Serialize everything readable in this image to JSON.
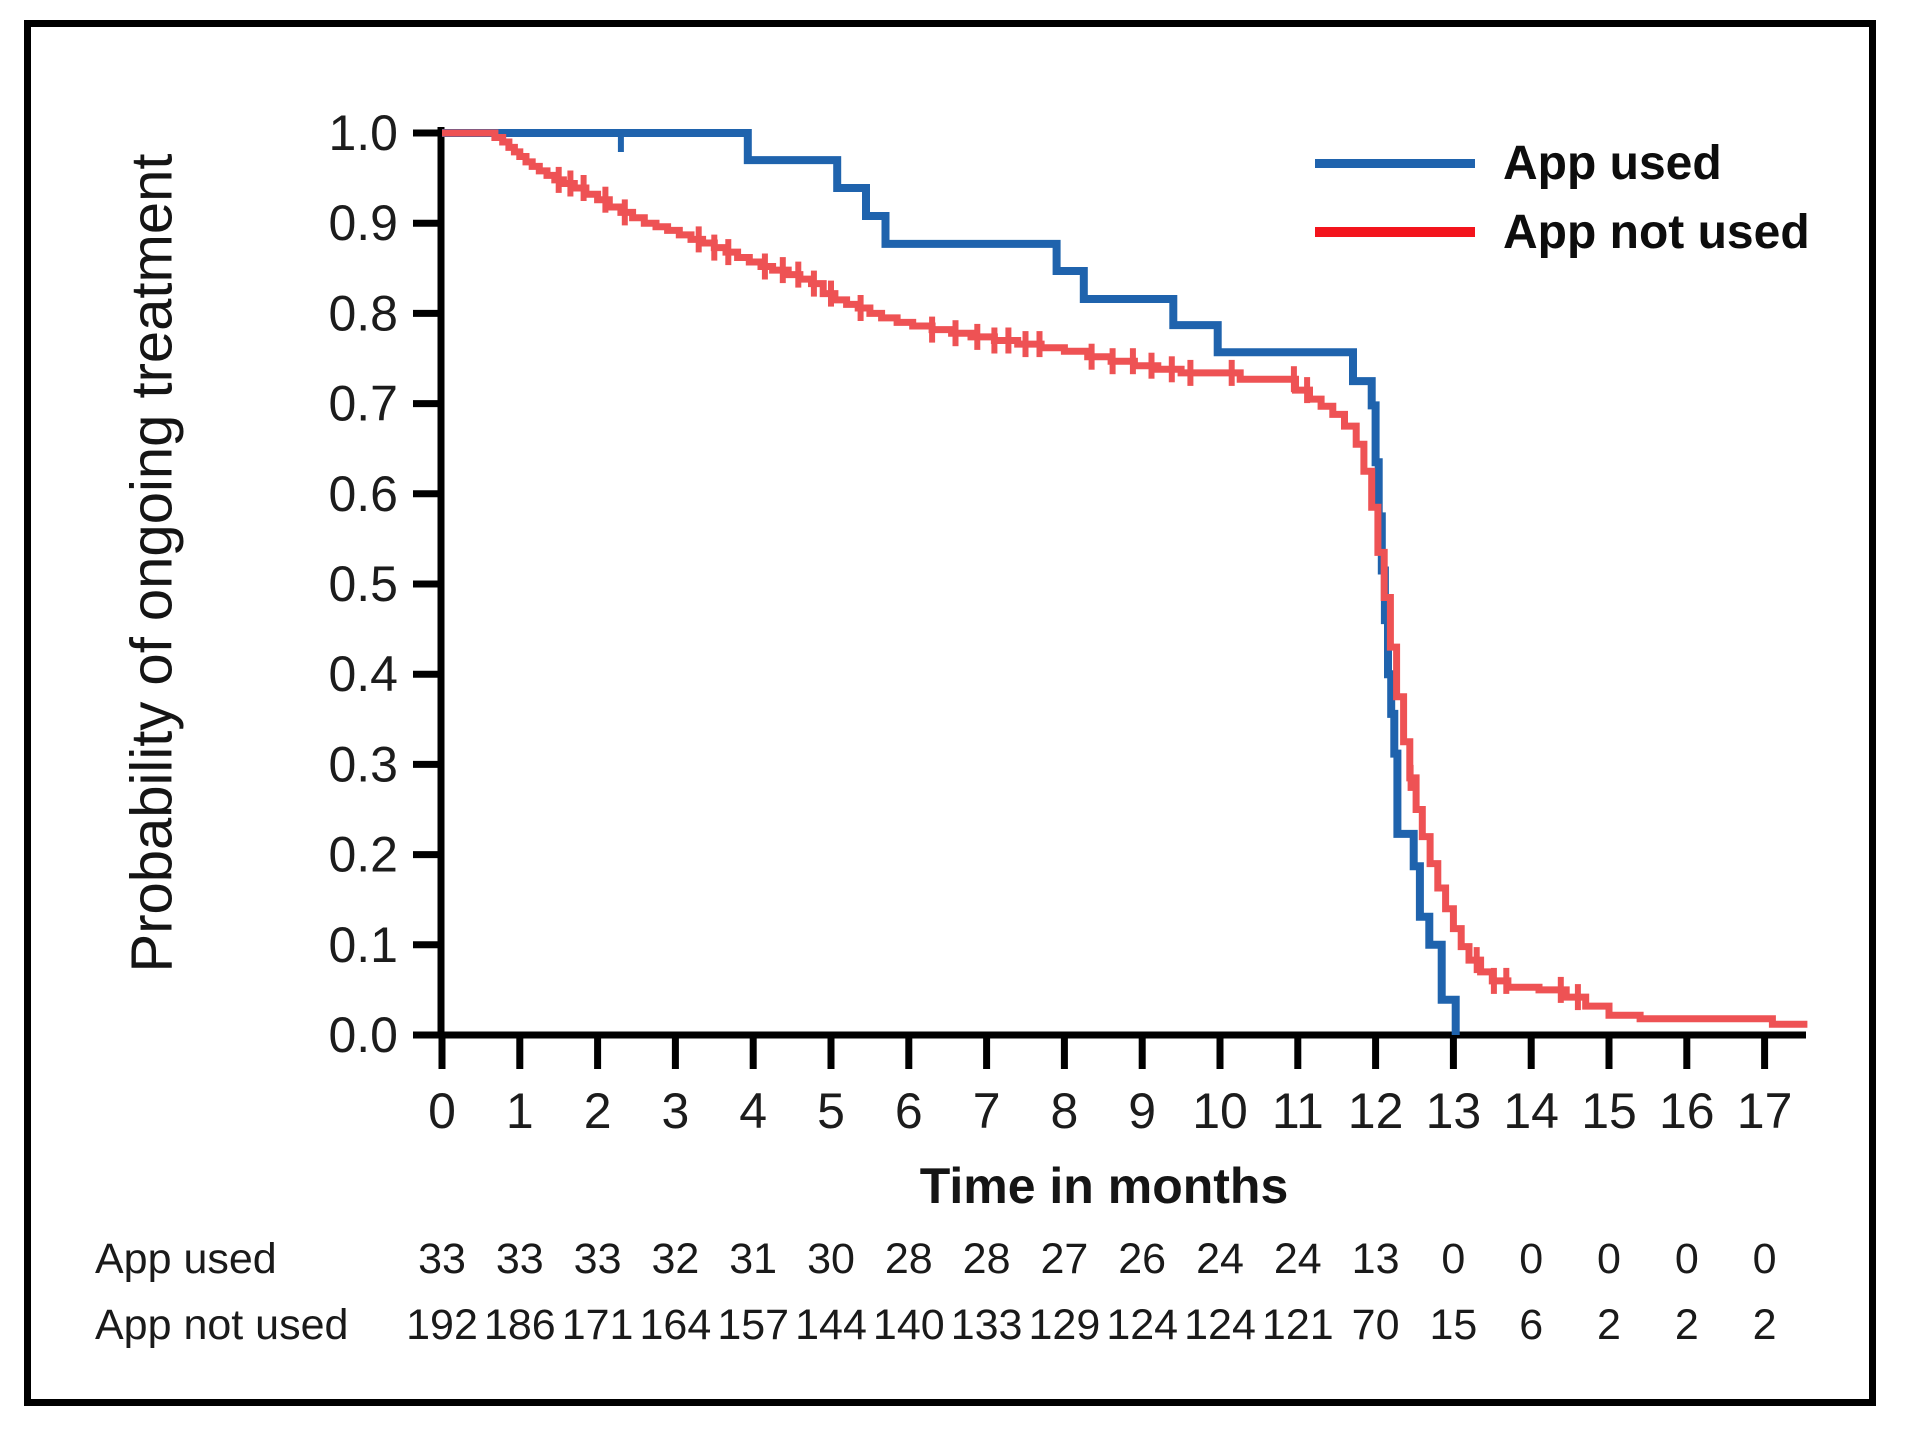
{
  "figure": {
    "background": "#ffffff",
    "border_color": "#000000"
  },
  "chart_data": {
    "type": "line",
    "subtype": "kaplan-meier-step",
    "title": "",
    "xlabel": "Time in months",
    "ylabel": "Probability of ongoing treatment",
    "xlim": [
      0,
      17.55
    ],
    "ylim": [
      0.0,
      1.0
    ],
    "grid": false,
    "axis_color": "#000000",
    "tick_label_color": "#1c1c1c",
    "xticks": [
      0,
      1,
      2,
      3,
      4,
      5,
      6,
      7,
      8,
      9,
      10,
      11,
      12,
      13,
      14,
      15,
      16,
      17
    ],
    "yticks": [
      "1.0",
      "0.9",
      "0.8",
      "0.7",
      "0.6",
      "0.5",
      "0.4",
      "0.3",
      "0.2",
      "0.1",
      "0.0"
    ],
    "legend": {
      "position": "top-right",
      "entries": [
        {
          "label": "App used",
          "color": "#1f63ad"
        },
        {
          "label": "App not used",
          "color": "#f3141c"
        }
      ]
    },
    "series": [
      {
        "name": "App used",
        "color": "#1f63ad",
        "end_time": 13.03,
        "points": [
          [
            0,
            1.0
          ],
          [
            3.93,
            0.97
          ],
          [
            5.08,
            0.939
          ],
          [
            5.45,
            0.908
          ],
          [
            5.7,
            0.877
          ],
          [
            7.9,
            0.847
          ],
          [
            8.25,
            0.816
          ],
          [
            9.4,
            0.787
          ],
          [
            9.97,
            0.757
          ],
          [
            11.71,
            0.725
          ],
          [
            11.95,
            0.698
          ],
          [
            12.0,
            0.635
          ],
          [
            12.04,
            0.575
          ],
          [
            12.08,
            0.515
          ],
          [
            12.12,
            0.46
          ],
          [
            12.16,
            0.4
          ],
          [
            12.2,
            0.356
          ],
          [
            12.24,
            0.312
          ],
          [
            12.28,
            0.223
          ],
          [
            12.49,
            0.187
          ],
          [
            12.57,
            0.131
          ],
          [
            12.69,
            0.1
          ],
          [
            12.85,
            0.039
          ],
          [
            13.03,
            0.0
          ]
        ],
        "censor_times": [
          2.3
        ]
      },
      {
        "name": "App not used",
        "color": "#ee5254",
        "end_time": 17.55,
        "points": [
          [
            0,
            1.0
          ],
          [
            0.68,
            0.995
          ],
          [
            0.78,
            0.99
          ],
          [
            0.86,
            0.984
          ],
          [
            0.93,
            0.979
          ],
          [
            1.0,
            0.974
          ],
          [
            1.08,
            0.968
          ],
          [
            1.16,
            0.963
          ],
          [
            1.25,
            0.958
          ],
          [
            1.35,
            0.953
          ],
          [
            1.45,
            0.948
          ],
          [
            1.56,
            0.944
          ],
          [
            1.7,
            0.939
          ],
          [
            1.85,
            0.932
          ],
          [
            2.0,
            0.926
          ],
          [
            2.15,
            0.918
          ],
          [
            2.3,
            0.912
          ],
          [
            2.45,
            0.906
          ],
          [
            2.6,
            0.9
          ],
          [
            2.75,
            0.896
          ],
          [
            2.9,
            0.892
          ],
          [
            3.05,
            0.887
          ],
          [
            3.2,
            0.882
          ],
          [
            3.35,
            0.878
          ],
          [
            3.5,
            0.873
          ],
          [
            3.65,
            0.868
          ],
          [
            3.8,
            0.862
          ],
          [
            3.95,
            0.857
          ],
          [
            4.1,
            0.852
          ],
          [
            4.25,
            0.848
          ],
          [
            4.45,
            0.843
          ],
          [
            4.6,
            0.838
          ],
          [
            4.75,
            0.833
          ],
          [
            4.9,
            0.822
          ],
          [
            5.05,
            0.815
          ],
          [
            5.2,
            0.81
          ],
          [
            5.35,
            0.806
          ],
          [
            5.5,
            0.8
          ],
          [
            5.65,
            0.795
          ],
          [
            5.85,
            0.79
          ],
          [
            6.05,
            0.786
          ],
          [
            6.3,
            0.782
          ],
          [
            6.55,
            0.778
          ],
          [
            6.8,
            0.774
          ],
          [
            7.1,
            0.77
          ],
          [
            7.4,
            0.766
          ],
          [
            7.7,
            0.762
          ],
          [
            8.0,
            0.758
          ],
          [
            8.3,
            0.752
          ],
          [
            8.6,
            0.747
          ],
          [
            8.9,
            0.742
          ],
          [
            9.2,
            0.738
          ],
          [
            9.5,
            0.734
          ],
          [
            10.26,
            0.727
          ],
          [
            10.97,
            0.715
          ],
          [
            11.15,
            0.705
          ],
          [
            11.3,
            0.697
          ],
          [
            11.45,
            0.688
          ],
          [
            11.6,
            0.675
          ],
          [
            11.75,
            0.655
          ],
          [
            11.85,
            0.625
          ],
          [
            11.95,
            0.585
          ],
          [
            12.03,
            0.535
          ],
          [
            12.11,
            0.485
          ],
          [
            12.19,
            0.43
          ],
          [
            12.27,
            0.375
          ],
          [
            12.36,
            0.325
          ],
          [
            12.44,
            0.285
          ],
          [
            12.52,
            0.25
          ],
          [
            12.6,
            0.22
          ],
          [
            12.7,
            0.19
          ],
          [
            12.8,
            0.163
          ],
          [
            12.9,
            0.14
          ],
          [
            13.0,
            0.118
          ],
          [
            13.1,
            0.098
          ],
          [
            13.2,
            0.083
          ],
          [
            13.35,
            0.07
          ],
          [
            13.5,
            0.06
          ],
          [
            13.7,
            0.053
          ],
          [
            14.1,
            0.05
          ],
          [
            14.45,
            0.042
          ],
          [
            14.7,
            0.032
          ],
          [
            15.0,
            0.022
          ],
          [
            15.4,
            0.018
          ],
          [
            17.1,
            0.012
          ]
        ],
        "censor_times": [
          1.5,
          1.65,
          1.82,
          2.1,
          2.35,
          3.3,
          3.5,
          3.68,
          4.15,
          4.38,
          4.58,
          4.78,
          5.0,
          5.38,
          6.3,
          6.6,
          6.88,
          7.1,
          7.28,
          7.5,
          7.68,
          8.35,
          8.62,
          8.88,
          9.12,
          9.38,
          9.62,
          10.15,
          10.95,
          11.12,
          12.45,
          13.3,
          13.52,
          13.68,
          14.38,
          14.6
        ]
      }
    ],
    "risk_table": {
      "rows": [
        {
          "label": "App used",
          "values": [
            33,
            33,
            33,
            32,
            31,
            30,
            28,
            28,
            27,
            26,
            24,
            24,
            13,
            0,
            0,
            0,
            0,
            0
          ]
        },
        {
          "label": "App not used",
          "values": [
            192,
            186,
            171,
            164,
            157,
            144,
            140,
            133,
            129,
            124,
            124,
            121,
            70,
            15,
            6,
            2,
            2,
            2
          ]
        }
      ]
    }
  }
}
